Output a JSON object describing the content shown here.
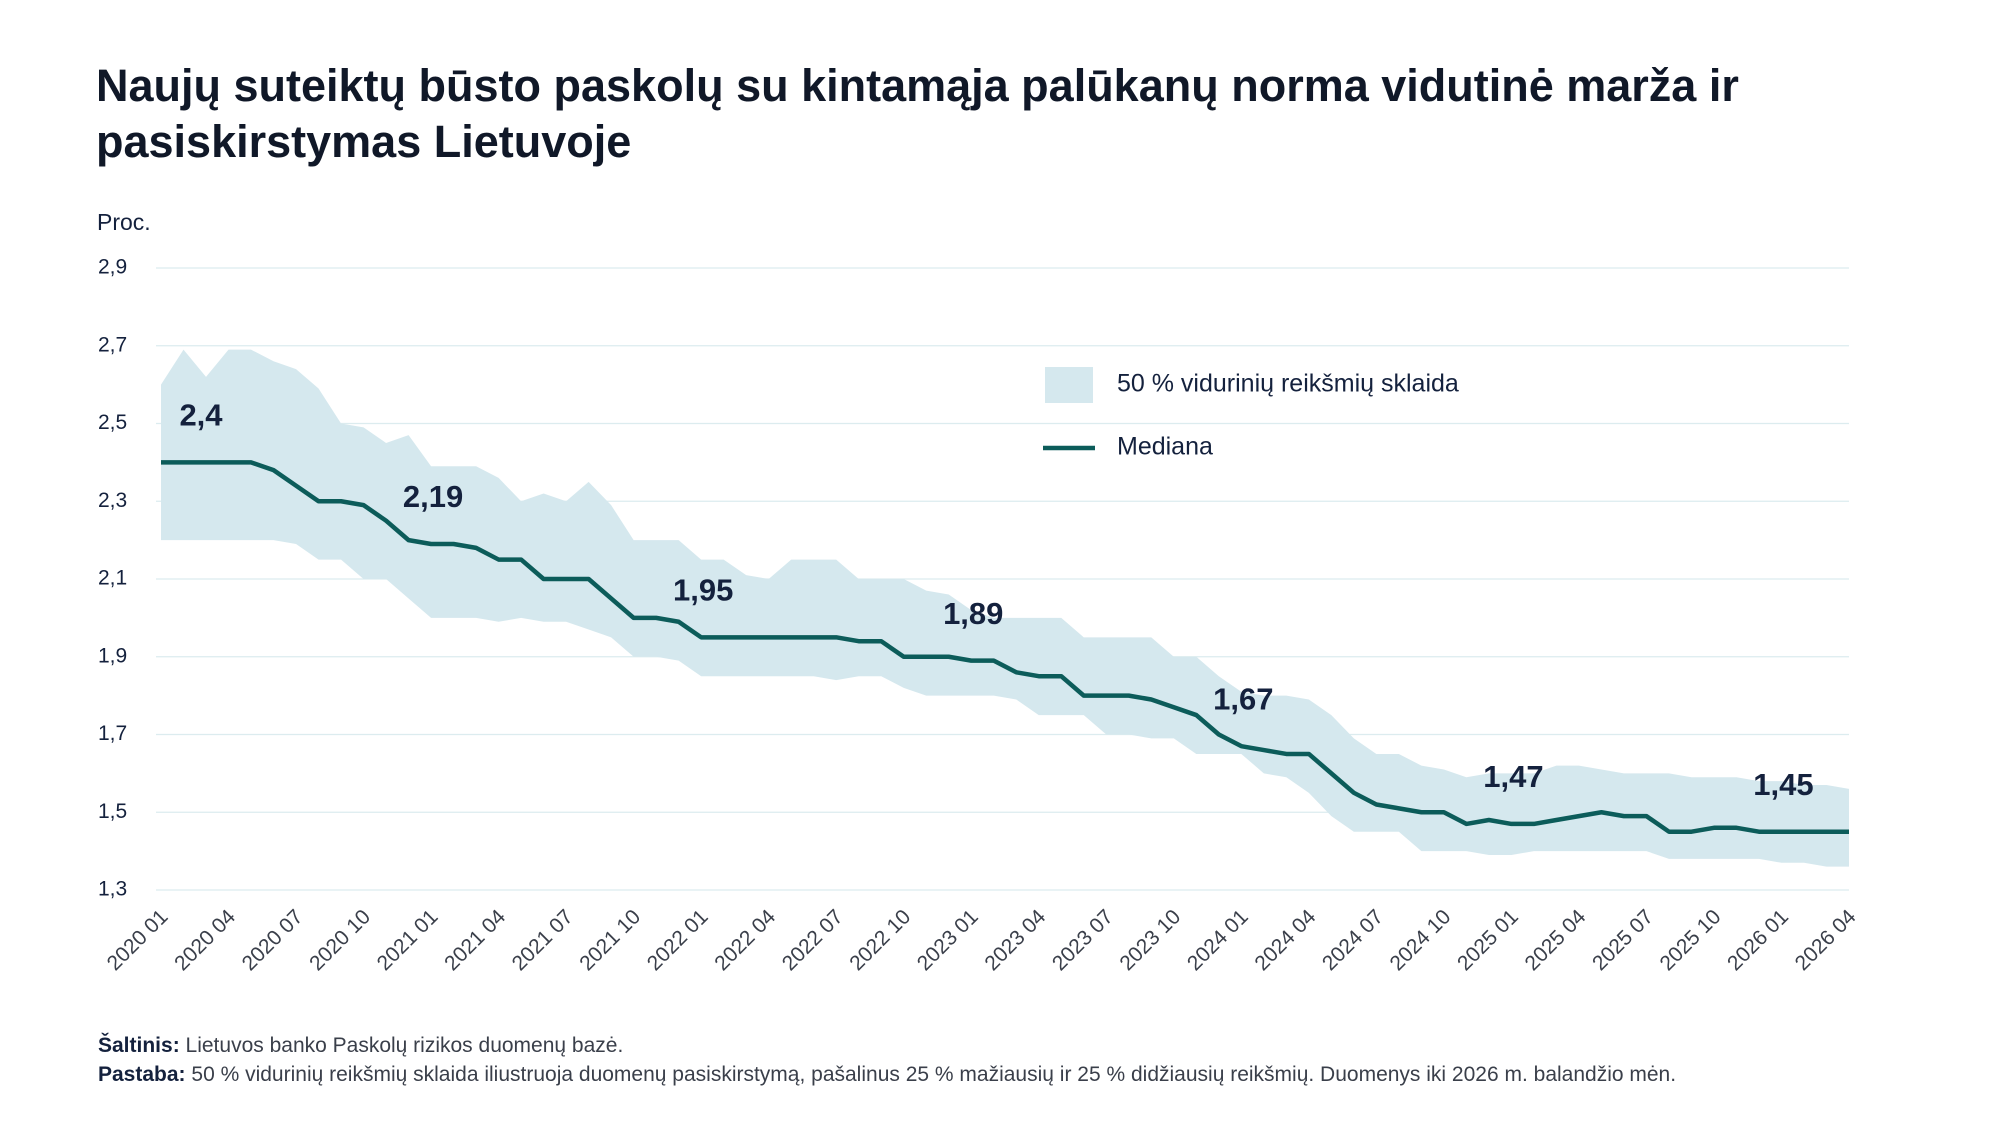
{
  "chart_data": {
    "type": "line",
    "title": "Naujų suteiktų būsto paskolų su kintamąja palūkanų norma vidutinė marža ir pasiskirstymas Lietuvoje",
    "y_label": "Proc.",
    "categories": [
      "2020 01",
      null,
      null,
      "2020 04",
      null,
      null,
      "2020 07",
      null,
      null,
      "2020 10",
      null,
      null,
      "2021 01",
      null,
      null,
      "2021 04",
      null,
      null,
      "2021 07",
      null,
      null,
      "2021 10",
      null,
      null,
      "2022 01",
      null,
      null,
      "2022 04",
      null,
      null,
      "2022 07",
      null,
      null,
      "2022 10",
      null,
      null,
      "2023 01",
      null,
      null,
      "2023 04",
      null,
      null,
      "2023 07",
      null,
      null,
      "2023 10",
      null,
      null,
      "2024 01",
      null,
      null,
      "2024 04",
      null,
      null,
      "2024 07",
      null,
      null,
      "2024 10",
      null,
      null,
      "2025 01",
      null,
      null,
      "2025 04",
      null,
      null,
      "2025 07",
      null,
      null,
      "2025 10",
      null,
      null,
      "2026 01",
      null,
      null,
      "2026 04"
    ],
    "ylim": [
      1.3,
      2.9
    ],
    "yticks": [
      {
        "value": 1.3,
        "label": "1,3"
      },
      {
        "value": 1.5,
        "label": "1,5"
      },
      {
        "value": 1.7,
        "label": "1,7"
      },
      {
        "value": 1.9,
        "label": "1,9"
      },
      {
        "value": 2.1,
        "label": "2,1"
      },
      {
        "value": 2.3,
        "label": "2,3"
      },
      {
        "value": 2.5,
        "label": "2,5"
      },
      {
        "value": 2.7,
        "label": "2,7"
      },
      {
        "value": 2.9,
        "label": "2,9"
      }
    ],
    "grid": true,
    "series": [
      {
        "name": "50 % vidurinių reikšmių sklaida",
        "color": "#d5e8ee",
        "upper": [
          2.6,
          2.69,
          2.62,
          2.69,
          2.69,
          2.66,
          2.64,
          2.59,
          2.5,
          2.49,
          2.45,
          2.47,
          2.39,
          2.39,
          2.39,
          2.36,
          2.3,
          2.32,
          2.3,
          2.35,
          2.29,
          2.2,
          2.2,
          2.2,
          2.15,
          2.15,
          2.11,
          2.1,
          2.15,
          2.15,
          2.15,
          2.1,
          2.1,
          2.1,
          2.07,
          2.06,
          2.02,
          2,
          2,
          2,
          2,
          1.95,
          1.95,
          1.95,
          1.95,
          1.9,
          1.9,
          1.85,
          1.81,
          1.8,
          1.8,
          1.79,
          1.75,
          1.69,
          1.65,
          1.65,
          1.62,
          1.61,
          1.59,
          1.6,
          1.6,
          1.6,
          1.62,
          1.62,
          1.61,
          1.6,
          1.6,
          1.6,
          1.59,
          1.59,
          1.59,
          1.58,
          1.58,
          1.57,
          1.57,
          1.56
        ],
        "lower": [
          2.2,
          2.2,
          2.2,
          2.2,
          2.2,
          2.2,
          2.19,
          2.15,
          2.15,
          2.1,
          2.1,
          2.05,
          2,
          2,
          2,
          1.99,
          2,
          1.99,
          1.99,
          1.97,
          1.95,
          1.9,
          1.9,
          1.89,
          1.85,
          1.85,
          1.85,
          1.85,
          1.85,
          1.85,
          1.84,
          1.85,
          1.85,
          1.82,
          1.8,
          1.8,
          1.8,
          1.8,
          1.79,
          1.75,
          1.75,
          1.75,
          1.7,
          1.7,
          1.69,
          1.69,
          1.65,
          1.65,
          1.65,
          1.6,
          1.59,
          1.55,
          1.49,
          1.45,
          1.45,
          1.45,
          1.4,
          1.4,
          1.4,
          1.39,
          1.39,
          1.4,
          1.4,
          1.4,
          1.4,
          1.4,
          1.4,
          1.38,
          1.38,
          1.38,
          1.38,
          1.38,
          1.37,
          1.37,
          1.36,
          1.36
        ]
      },
      {
        "name": "Mediana",
        "color": "#0c5c5a",
        "values": [
          2.4,
          2.4,
          2.4,
          2.4,
          2.4,
          2.38,
          2.34,
          2.3,
          2.3,
          2.29,
          2.25,
          2.2,
          2.19,
          2.19,
          2.18,
          2.15,
          2.15,
          2.1,
          2.1,
          2.1,
          2.05,
          2,
          2,
          1.99,
          1.95,
          1.95,
          1.95,
          1.95,
          1.95,
          1.95,
          1.95,
          1.94,
          1.94,
          1.9,
          1.9,
          1.9,
          1.89,
          1.89,
          1.86,
          1.85,
          1.85,
          1.8,
          1.8,
          1.8,
          1.79,
          1.77,
          1.75,
          1.7,
          1.67,
          1.66,
          1.65,
          1.65,
          1.6,
          1.55,
          1.52,
          1.51,
          1.5,
          1.5,
          1.47,
          1.48,
          1.47,
          1.47,
          1.48,
          1.49,
          1.5,
          1.49,
          1.49,
          1.45,
          1.45,
          1.46,
          1.46,
          1.45,
          1.45,
          1.45,
          1.45,
          1.45
        ],
        "value_labels": [
          "2,4",
          null,
          null,
          null,
          null,
          null,
          null,
          null,
          null,
          null,
          null,
          null,
          "2,19",
          null,
          null,
          null,
          null,
          null,
          null,
          null,
          null,
          null,
          null,
          null,
          "1,95",
          null,
          null,
          null,
          null,
          null,
          null,
          null,
          null,
          null,
          null,
          null,
          "1,89",
          null,
          null,
          null,
          null,
          null,
          null,
          null,
          null,
          null,
          null,
          null,
          "1,67",
          null,
          null,
          null,
          null,
          null,
          null,
          null,
          null,
          null,
          null,
          null,
          "1,47",
          null,
          null,
          null,
          null,
          null,
          null,
          null,
          null,
          null,
          null,
          null,
          "1,45",
          null,
          null,
          null
        ]
      }
    ],
    "source_label": "Šaltinis:",
    "source": "Lietuvos banko Paskolų rizikos duomenų bazė.",
    "note_label": "Pastaba:",
    "note": "50 % vidurinių reikšmių sklaida iliustruoja duomenų pasiskirstymą, pašalinus 25 % mažiausių ir 25 % didžiausių reikšmių. Duomenys iki 2026 m. balandžio mėn."
  }
}
